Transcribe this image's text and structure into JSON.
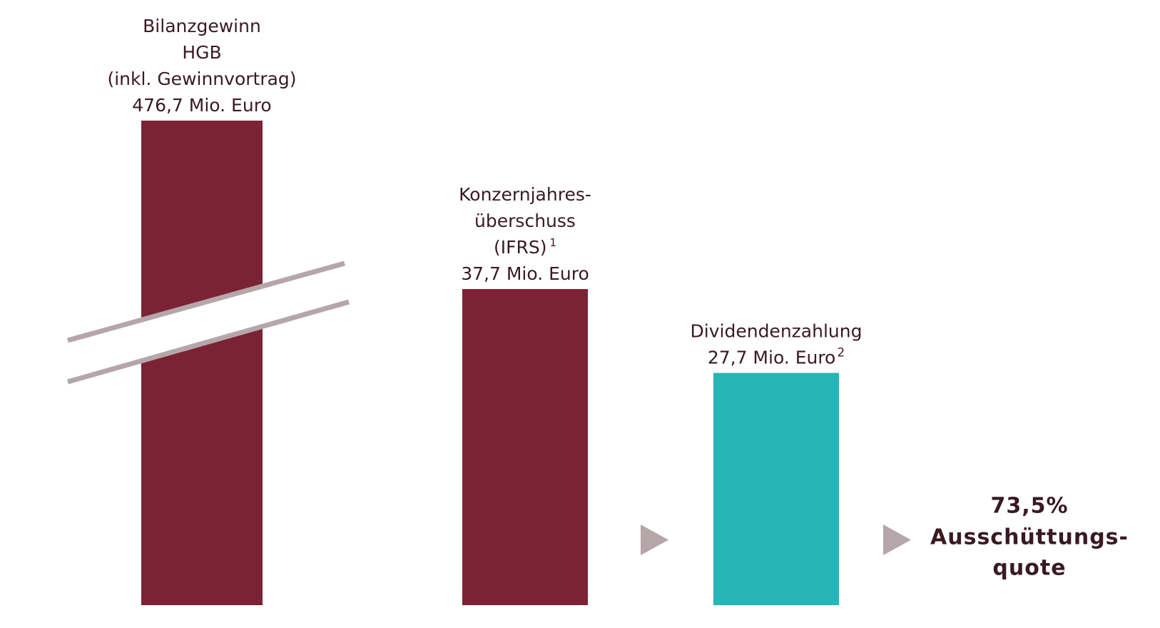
{
  "chart_data": {
    "type": "bar",
    "categories": [
      [
        "Bilanzgewinn",
        "HGB",
        "(inkl. Gewinnvortrag)"
      ],
      [
        "Konzernjahres-",
        "überschuss",
        "(IFRS)"
      ],
      [
        "Dividendenzahlung"
      ]
    ],
    "category_notes": [
      null,
      "1",
      null
    ],
    "values": [
      476.7,
      37.7,
      27.7
    ],
    "value_labels": [
      "476,7 Mio. Euro",
      "37,7 Mio. Euro",
      "27,7 Mio. Euro"
    ],
    "value_notes": [
      null,
      null,
      "2"
    ],
    "colors": [
      "#7b2334",
      "#7b2334",
      "#27b5b8"
    ],
    "axis_break": [
      true,
      false,
      false
    ],
    "payout_ratio": 73.5,
    "payout_ratio_label": "73,5%",
    "payout_text": [
      "Ausschüttungs-",
      "quote"
    ],
    "arrow_color": "#b5a6aa"
  }
}
